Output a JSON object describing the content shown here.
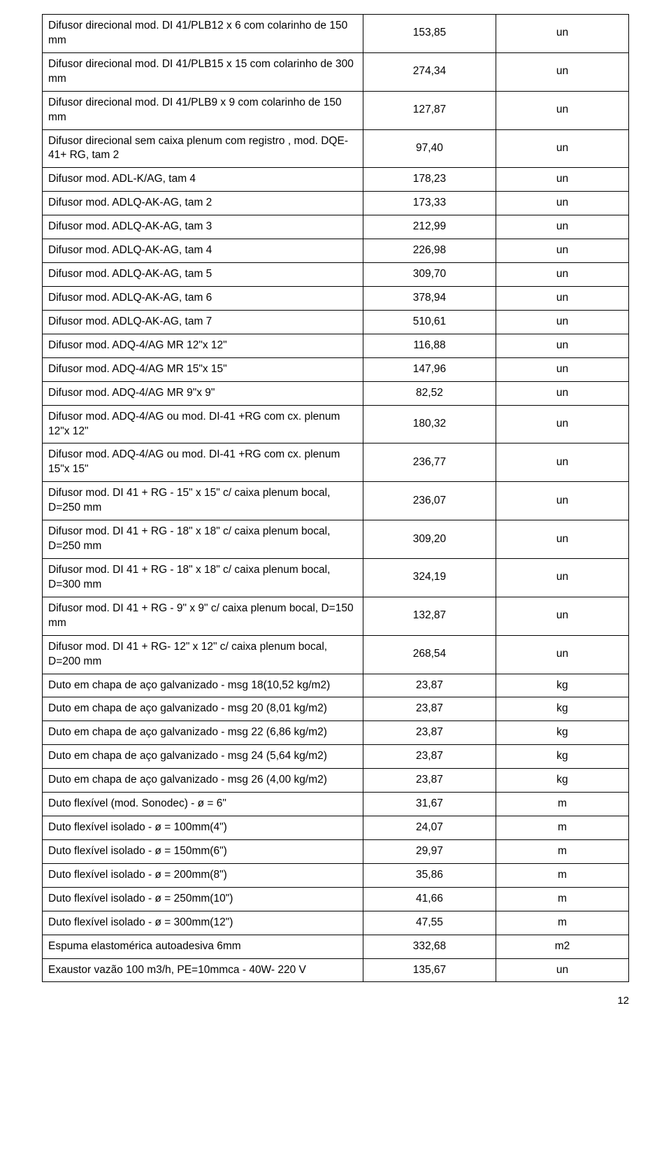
{
  "page_number": "12",
  "column_widths": {
    "desc_pct": 56,
    "price_pct": 22,
    "unit_pct": 22
  },
  "colors": {
    "background": "#ffffff",
    "border": "#000000",
    "text": "#000000"
  },
  "font": {
    "family": "Arial",
    "size_pt": 12
  },
  "rows": [
    {
      "desc": "Difusor direcional mod. DI 41/PLB12 x 6 com colarinho de 150 mm",
      "price": "153,85",
      "unit": "un"
    },
    {
      "desc": "Difusor direcional mod. DI 41/PLB15 x 15 com colarinho de 300 mm",
      "price": "274,34",
      "unit": "un"
    },
    {
      "desc": "Difusor direcional mod. DI 41/PLB9 x 9 com colarinho de 150 mm",
      "price": "127,87",
      "unit": "un"
    },
    {
      "desc": "Difusor direcional sem caixa plenum com registro , mod. DQE-41+ RG, tam 2",
      "price": "97,40",
      "unit": "un"
    },
    {
      "desc": "Difusor mod. ADL-K/AG, tam 4",
      "price": "178,23",
      "unit": "un"
    },
    {
      "desc": "Difusor mod. ADLQ-AK-AG, tam 2",
      "price": "173,33",
      "unit": "un"
    },
    {
      "desc": "Difusor mod. ADLQ-AK-AG, tam 3",
      "price": "212,99",
      "unit": "un"
    },
    {
      "desc": "Difusor mod. ADLQ-AK-AG, tam 4",
      "price": "226,98",
      "unit": "un"
    },
    {
      "desc": "Difusor mod. ADLQ-AK-AG, tam 5",
      "price": "309,70",
      "unit": "un"
    },
    {
      "desc": "Difusor mod. ADLQ-AK-AG, tam 6",
      "price": "378,94",
      "unit": "un"
    },
    {
      "desc": "Difusor mod. ADLQ-AK-AG, tam 7",
      "price": "510,61",
      "unit": "un"
    },
    {
      "desc": "Difusor mod. ADQ-4/AG  MR 12\"x 12\"",
      "price": "116,88",
      "unit": "un"
    },
    {
      "desc": "Difusor mod. ADQ-4/AG  MR 15\"x 15\"",
      "price": "147,96",
      "unit": "un"
    },
    {
      "desc": "Difusor mod. ADQ-4/AG  MR 9\"x 9\"",
      "price": "82,52",
      "unit": "un"
    },
    {
      "desc": "Difusor mod. ADQ-4/AG ou mod. DI-41 +RG com cx. plenum 12\"x 12\"",
      "price": "180,32",
      "unit": "un"
    },
    {
      "desc": "Difusor mod. ADQ-4/AG ou mod. DI-41 +RG com cx. plenum 15\"x 15\"",
      "price": "236,77",
      "unit": "un"
    },
    {
      "desc": "Difusor mod. DI 41 + RG - 15\" x 15\" c/ caixa plenum bocal, D=250 mm",
      "price": "236,07",
      "unit": "un"
    },
    {
      "desc": "Difusor mod. DI 41 + RG - 18\" x 18\" c/ caixa plenum bocal, D=250 mm",
      "price": "309,20",
      "unit": "un"
    },
    {
      "desc": "Difusor mod. DI 41 + RG - 18\" x 18\" c/ caixa plenum bocal, D=300 mm",
      "price": "324,19",
      "unit": "un"
    },
    {
      "desc": "Difusor mod. DI 41 + RG - 9\" x 9\" c/ caixa plenum bocal, D=150 mm",
      "price": "132,87",
      "unit": "un"
    },
    {
      "desc": "Difusor mod. DI 41 + RG- 12\" x 12\" c/ caixa plenum bocal, D=200 mm",
      "price": "268,54",
      "unit": "un"
    },
    {
      "desc": "Duto em chapa de aço galvanizado - msg 18(10,52 kg/m2)",
      "price": "23,87",
      "unit": "kg"
    },
    {
      "desc": "Duto em chapa de aço galvanizado - msg 20 (8,01 kg/m2)",
      "price": "23,87",
      "unit": "kg"
    },
    {
      "desc": "Duto em chapa de aço galvanizado - msg 22 (6,86 kg/m2)",
      "price": "23,87",
      "unit": "kg"
    },
    {
      "desc": "Duto em chapa de aço galvanizado - msg 24 (5,64 kg/m2)",
      "price": "23,87",
      "unit": "kg"
    },
    {
      "desc": "Duto em chapa de aço galvanizado - msg 26 (4,00 kg/m2)",
      "price": "23,87",
      "unit": "kg"
    },
    {
      "desc": "Duto flexível (mod. Sonodec) - ø = 6\"",
      "price": "31,67",
      "unit": "m"
    },
    {
      "desc": "Duto flexível isolado - ø = 100mm(4\")",
      "price": "24,07",
      "unit": "m"
    },
    {
      "desc": "Duto flexível isolado - ø = 150mm(6\")",
      "price": "29,97",
      "unit": "m"
    },
    {
      "desc": "Duto flexível isolado - ø = 200mm(8\")",
      "price": "35,86",
      "unit": "m"
    },
    {
      "desc": "Duto flexível isolado - ø = 250mm(10\")",
      "price": "41,66",
      "unit": "m"
    },
    {
      "desc": "Duto flexível isolado - ø = 300mm(12\")",
      "price": "47,55",
      "unit": "m"
    },
    {
      "desc": "Espuma elastomérica autoadesiva 6mm",
      "price": "332,68",
      "unit": "m2"
    },
    {
      "desc": "Exaustor  vazão 100 m3/h, PE=10mmca - 40W- 220 V",
      "price": "135,67",
      "unit": "un"
    }
  ]
}
